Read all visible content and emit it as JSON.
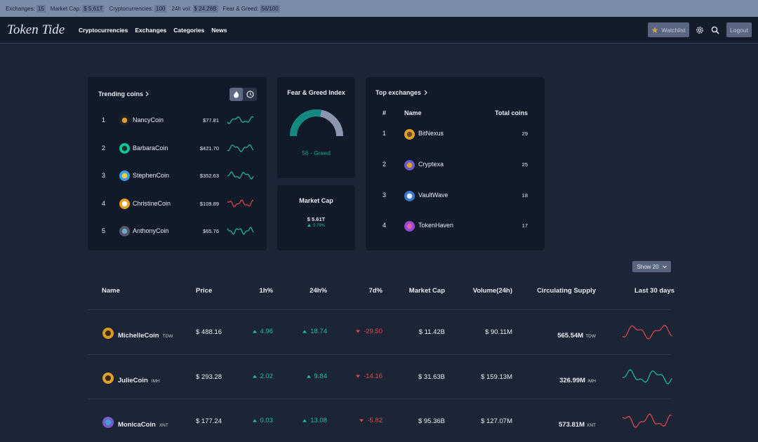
{
  "top_bar": {
    "items": [
      {
        "label": "Exchanges:",
        "value": "15"
      },
      {
        "label": "Market Cap:",
        "value": "$ 5.61T"
      },
      {
        "label": "Cryptocurrencies:",
        "value": "100"
      },
      {
        "label": "24h vol:",
        "value": "$ 24.28B"
      },
      {
        "label": "Fear & Greed:",
        "value": "56/100"
      }
    ]
  },
  "nav": {
    "logo": "Token Tide",
    "links": [
      "Cryptocurrencies",
      "Exchanges",
      "Categories",
      "News"
    ],
    "watchlist": "Watchlist",
    "logout": "Logout"
  },
  "trending": {
    "title": "Trending coins",
    "rows": [
      {
        "rank": "1",
        "name": "NancyCoin",
        "price": "$77.81"
      },
      {
        "rank": "2",
        "name": "BarbaraCoin",
        "price": "$421.70"
      },
      {
        "rank": "3",
        "name": "StephenCoin",
        "price": "$352.63"
      },
      {
        "rank": "4",
        "name": "ChristineCoin",
        "price": "$109.89"
      },
      {
        "rank": "5",
        "name": "AnthonyCoin",
        "price": "$65.76"
      }
    ]
  },
  "fear_greed": {
    "title": "Fear & Greed Index",
    "label": "56 - Greed"
  },
  "market_cap": {
    "title": "Market Cap",
    "value": "$ 5.61T",
    "change": "0.79%"
  },
  "top_exchanges": {
    "title": "Top exchanges",
    "headers": [
      "#",
      "Name",
      "Total coins"
    ],
    "rows": [
      {
        "rank": "1",
        "name": "BitNexus",
        "coins": "29"
      },
      {
        "rank": "2",
        "name": "Cryptexa",
        "coins": "25"
      },
      {
        "rank": "3",
        "name": "VaultWave",
        "coins": "18"
      },
      {
        "rank": "4",
        "name": "TokenHaven",
        "coins": "17"
      }
    ]
  },
  "table": {
    "show": "Show 20",
    "headers": [
      "Name",
      "Price",
      "1h%",
      "24h%",
      "7d%",
      "Market Cap",
      "Volume(24h)",
      "Circulating Supply",
      "Last 30 days"
    ],
    "rows": [
      {
        "name": "MichelleCoin",
        "symbol": "TDW",
        "price": "$ 488.16",
        "h1": "4.96",
        "h24": "18.74",
        "d7": "-29.50",
        "market_cap": "$ 11.42B",
        "volume": "$ 90.11M",
        "supply": "565.54M",
        "supply_symbol": "TDW"
      },
      {
        "name": "JulieCoin",
        "symbol": "IMH",
        "price": "$ 293.28",
        "h1": "2.02",
        "h24": "9.84",
        "d7": "-14.16",
        "market_cap": "$ 31.63B",
        "volume": "$ 159.13M",
        "supply": "326.99M",
        "supply_symbol": "IMH"
      },
      {
        "name": "MonicaCoin",
        "symbol": "XNT",
        "price": "$ 177.24",
        "h1": "0.03",
        "h24": "13.08",
        "d7": "-5.82",
        "market_cap": "$ 95.36B",
        "volume": "$ 127.07M",
        "supply": "573.81M",
        "supply_symbol": "XNT"
      }
    ]
  }
}
